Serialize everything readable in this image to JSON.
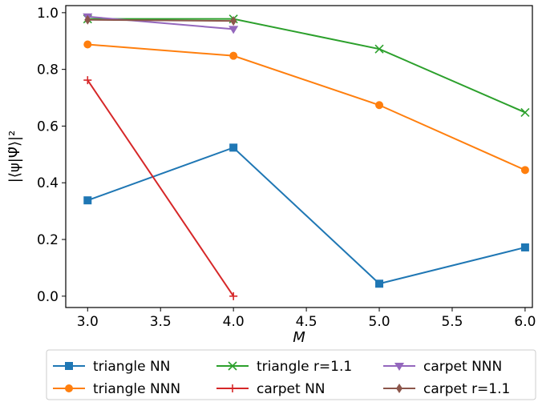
{
  "chart_data": {
    "type": "line",
    "xlabel": "M",
    "ylabel": "|⟨ψ|Ψ̃⟩|²",
    "xlim": [
      2.85,
      6.05
    ],
    "ylim": [
      -0.04,
      1.025
    ],
    "xticks": [
      3.0,
      3.5,
      4.0,
      4.5,
      5.0,
      5.5,
      6.0
    ],
    "xtick_labels": [
      "3.0",
      "3.5",
      "4.0",
      "4.5",
      "5.0",
      "5.5",
      "6.0"
    ],
    "yticks": [
      0.0,
      0.2,
      0.4,
      0.6,
      0.8,
      1.0
    ],
    "ytick_labels": [
      "0.0",
      "0.2",
      "0.4",
      "0.6",
      "0.8",
      "1.0"
    ],
    "grid": false,
    "legend_position": "bottom",
    "series": [
      {
        "name": "triangle NN",
        "color": "#1f77b4",
        "marker": "square",
        "x": [
          3,
          4,
          5,
          6
        ],
        "y": [
          0.338,
          0.524,
          0.044,
          0.172
        ]
      },
      {
        "name": "triangle NNN",
        "color": "#ff7f0e",
        "marker": "circle",
        "x": [
          3,
          4,
          5,
          6
        ],
        "y": [
          0.888,
          0.848,
          0.674,
          0.445
        ]
      },
      {
        "name": "triangle r=1.1",
        "color": "#2ca02c",
        "marker": "x",
        "x": [
          3,
          4,
          5,
          6
        ],
        "y": [
          0.978,
          0.978,
          0.872,
          0.648
        ]
      },
      {
        "name": "carpet NN",
        "color": "#d62728",
        "marker": "plus",
        "x": [
          3,
          4
        ],
        "y": [
          0.762,
          0.0
        ]
      },
      {
        "name": "carpet NNN",
        "color": "#9467bd",
        "marker": "triangle-down",
        "x": [
          3,
          4
        ],
        "y": [
          0.986,
          0.942
        ]
      },
      {
        "name": "carpet r=1.1",
        "color": "#8c564b",
        "marker": "diamond",
        "x": [
          3,
          4
        ],
        "y": [
          0.975,
          0.971
        ]
      }
    ]
  }
}
